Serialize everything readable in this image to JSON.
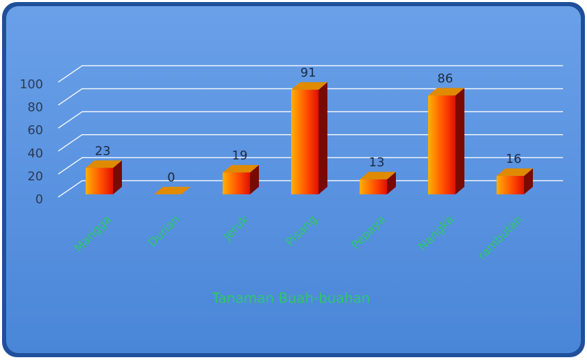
{
  "chart_data": {
    "type": "bar3d",
    "x_label": "Tanaman Buah-buahan",
    "categories": [
      "Mangga",
      "Durian",
      "Jeruk",
      "Pisang",
      "Pepaya",
      "Nangka",
      "rambutan"
    ],
    "values": [
      23,
      0,
      19,
      91,
      13,
      86,
      16
    ],
    "color": "#ff6a00",
    "ylim": [
      0,
      100
    ],
    "yticks": [
      0,
      20,
      40,
      60,
      80,
      100
    ],
    "grid": true
  }
}
